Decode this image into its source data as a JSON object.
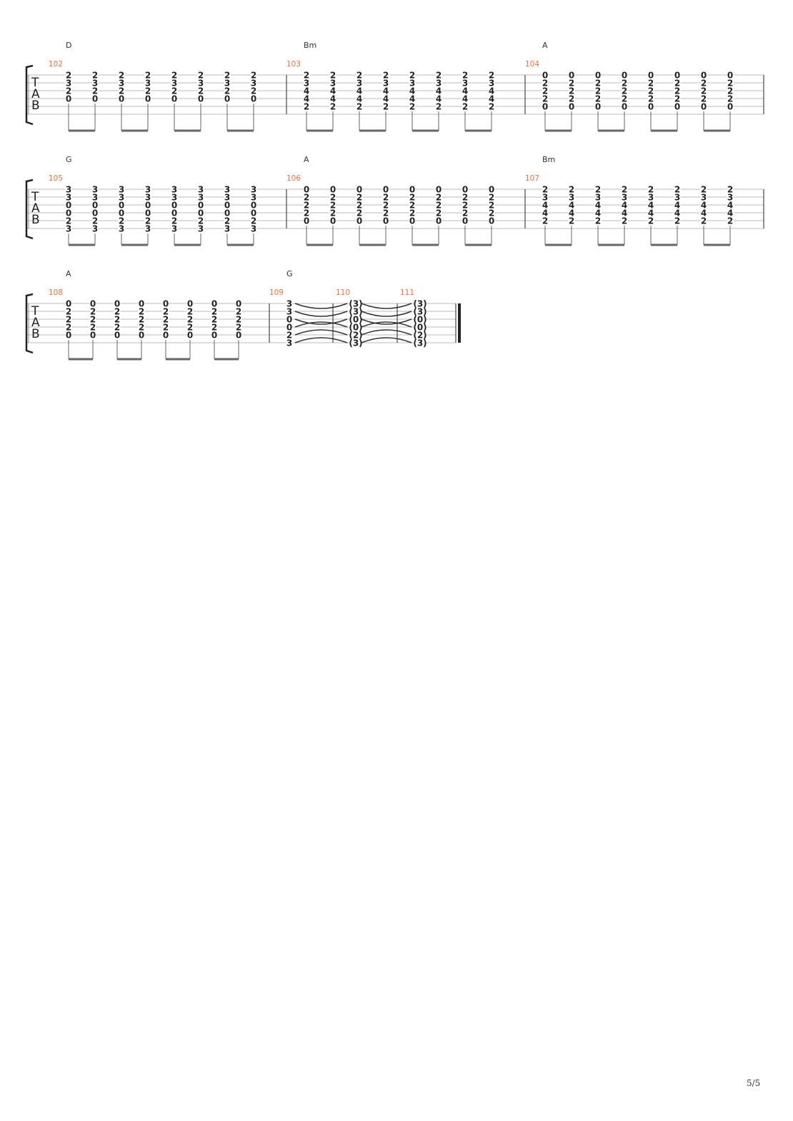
{
  "clef_letters": [
    "T",
    "A",
    "B"
  ],
  "systems": [
    {
      "measures": [
        {
          "number": "102",
          "chord": "D",
          "frets": [
            2,
            3,
            2,
            0,
            null,
            null
          ],
          "beats": 8
        },
        {
          "number": "103",
          "chord": "Bm",
          "frets": [
            2,
            3,
            4,
            4,
            2,
            null
          ],
          "beats": 8
        },
        {
          "number": "104",
          "chord": "A",
          "frets": [
            0,
            2,
            2,
            2,
            0,
            null
          ],
          "beats": 8
        }
      ]
    },
    {
      "measures": [
        {
          "number": "105",
          "chord": "G",
          "frets": [
            3,
            3,
            0,
            0,
            2,
            3
          ],
          "beats": 8
        },
        {
          "number": "106",
          "chord": "A",
          "frets": [
            0,
            2,
            2,
            2,
            0,
            null
          ],
          "beats": 8
        },
        {
          "number": "107",
          "chord": "Bm",
          "frets": [
            2,
            3,
            4,
            4,
            2,
            null
          ],
          "beats": 8
        }
      ]
    },
    {
      "measures": [
        {
          "number": "108",
          "chord": "A",
          "frets": [
            0,
            2,
            2,
            2,
            0,
            null
          ],
          "beats": 8
        },
        {
          "number": "109",
          "chord": "G",
          "frets": [
            3,
            3,
            0,
            0,
            2,
            3
          ],
          "beats": 1,
          "whole": true
        },
        {
          "number": "110",
          "chord": "",
          "frets": [
            3,
            3,
            0,
            0,
            2,
            3
          ],
          "beats": 1,
          "whole": true,
          "tied": true
        },
        {
          "number": "111",
          "chord": "",
          "frets": [
            3,
            3,
            0,
            0,
            2,
            3
          ],
          "beats": 1,
          "whole": true,
          "tied": true
        }
      ]
    }
  ],
  "page_number": "5/5",
  "colors": {
    "measure_number": "#f2703a",
    "staff_line": "#bbbbbb",
    "text": "#222222"
  }
}
